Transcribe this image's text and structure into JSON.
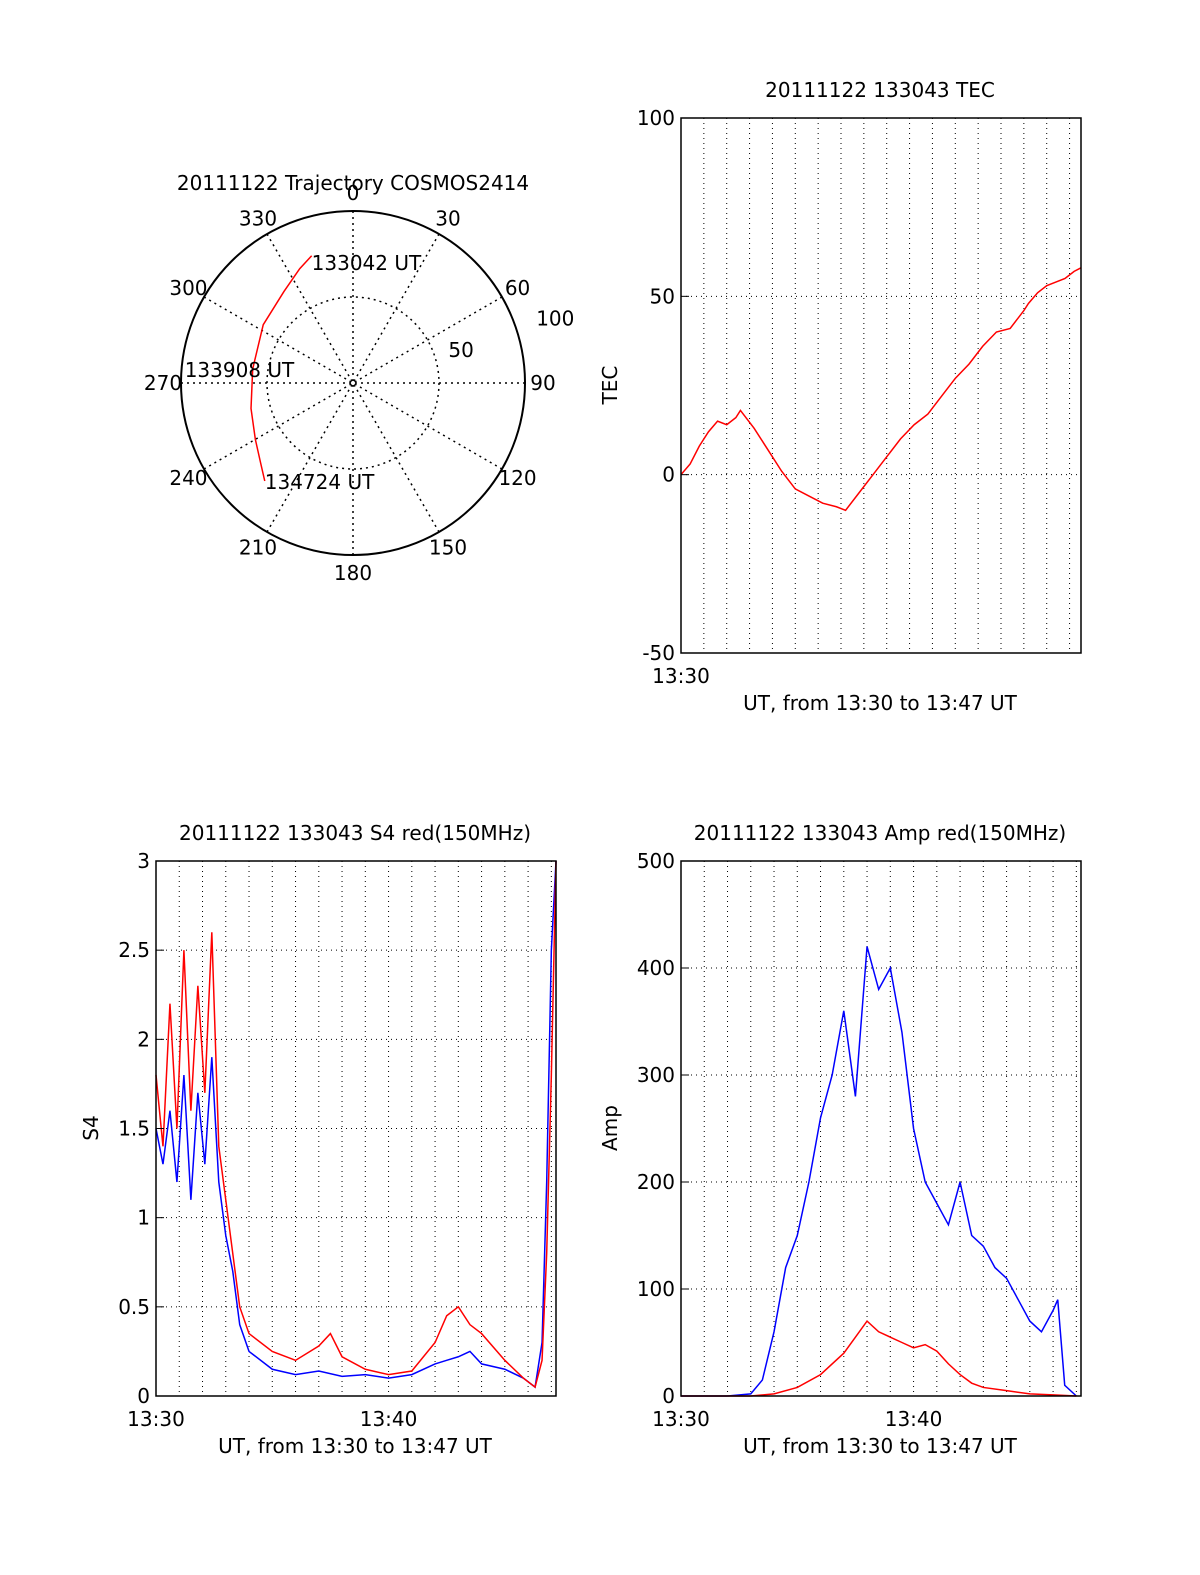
{
  "colors": {
    "red": "#ff0000",
    "blue": "#0000ff",
    "axis": "#000000",
    "grid": "#000000"
  },
  "chart_data": [
    {
      "type": "polar",
      "title": "20111122 Trajectory COSMOS2414",
      "angle_labels": [
        "0",
        "30",
        "60",
        "90",
        "120",
        "150",
        "180",
        "210",
        "240",
        "270",
        "300",
        "330"
      ],
      "radius_labels": [
        "50",
        "100"
      ],
      "grid": true,
      "trajectory": {
        "color": "#ff0000",
        "points": [
          {
            "az": 342,
            "el": 20
          },
          {
            "az": 335,
            "el": 24
          },
          {
            "az": 323,
            "el": 30
          },
          {
            "az": 303,
            "el": 34
          },
          {
            "az": 278,
            "el": 37
          },
          {
            "az": 256,
            "el": 35
          },
          {
            "az": 240,
            "el": 31
          },
          {
            "az": 229,
            "el": 26
          },
          {
            "az": 222,
            "el": 21
          }
        ],
        "labels": [
          {
            "text": "133042 UT",
            "az": 342,
            "el": 20
          },
          {
            "text": "133908 UT",
            "az": 278,
            "el": 37
          },
          {
            "text": "134724 UT",
            "az": 222,
            "el": 21
          }
        ]
      }
    },
    {
      "type": "line",
      "title": "20111122 133043 TEC",
      "xlabel": "UT, from 13:30 to 13:47 UT",
      "ylabel": "TEC",
      "xlim": [
        0,
        17.5
      ],
      "ylim": [
        -50,
        100
      ],
      "yticks": [
        -50,
        0,
        50,
        100
      ],
      "xticks": [
        {
          "v": 0,
          "label": "13:30"
        }
      ],
      "grid": true,
      "series": [
        {
          "color": "#ff0000",
          "x": [
            0.0,
            0.4,
            0.8,
            1.2,
            1.6,
            2.0,
            2.4,
            2.6,
            3.2,
            3.8,
            4.4,
            5.0,
            5.6,
            6.2,
            6.8,
            7.2,
            7.8,
            8.4,
            9.0,
            9.6,
            10.2,
            10.8,
            11.4,
            12.0,
            12.6,
            13.2,
            13.8,
            14.4,
            15.0,
            15.2,
            15.6,
            16.0,
            16.4,
            16.8,
            17.2,
            17.5
          ],
          "y": [
            0,
            3,
            8,
            12,
            15,
            14,
            16,
            18,
            13,
            7,
            1,
            -4,
            -6,
            -8,
            -9,
            -10,
            -5,
            0,
            5,
            10,
            14,
            17,
            22,
            27,
            31,
            36,
            40,
            41,
            46,
            48,
            51,
            53,
            54,
            55,
            57,
            58
          ]
        }
      ]
    },
    {
      "type": "line",
      "title": "20111122 133043 S4 red(150MHz)",
      "xlabel": "UT, from 13:30 to 13:47 UT",
      "ylabel": "S4",
      "xlim": [
        0,
        17.2
      ],
      "ylim": [
        0,
        3
      ],
      "yticks": [
        0,
        0.5,
        1,
        1.5,
        2,
        2.5,
        3
      ],
      "xticks": [
        {
          "v": 0,
          "label": "13:30"
        },
        {
          "v": 10,
          "label": "13:40"
        }
      ],
      "grid": true,
      "series": [
        {
          "color": "#0000ff",
          "x": [
            0,
            0.3,
            0.6,
            0.9,
            1.2,
            1.5,
            1.8,
            2.1,
            2.4,
            2.7,
            3.0,
            3.3,
            3.6,
            4.0,
            5.0,
            6.0,
            7.0,
            8.0,
            9.0,
            10.0,
            11.0,
            12.0,
            12.5,
            13.0,
            13.5,
            14.0,
            15.0,
            15.8,
            16.3,
            16.6,
            16.8,
            17.0,
            17.2
          ],
          "y": [
            1.5,
            1.3,
            1.6,
            1.2,
            1.8,
            1.1,
            1.7,
            1.3,
            1.9,
            1.2,
            0.9,
            0.7,
            0.4,
            0.25,
            0.15,
            0.12,
            0.14,
            0.11,
            0.12,
            0.1,
            0.12,
            0.18,
            0.2,
            0.22,
            0.25,
            0.18,
            0.15,
            0.1,
            0.05,
            0.3,
            1.2,
            2.5,
            3
          ]
        },
        {
          "color": "#ff0000",
          "x": [
            0,
            0.3,
            0.6,
            0.9,
            1.2,
            1.5,
            1.8,
            2.1,
            2.4,
            2.7,
            3.0,
            3.3,
            3.6,
            4.0,
            5.0,
            6.0,
            7.0,
            7.5,
            8.0,
            9.0,
            10.0,
            11.0,
            12.0,
            12.5,
            13.0,
            13.5,
            14.0,
            15.0,
            15.8,
            16.3,
            16.6,
            16.8,
            17.0,
            17.2
          ],
          "y": [
            1.8,
            1.4,
            2.2,
            1.5,
            2.5,
            1.6,
            2.3,
            1.7,
            2.6,
            1.4,
            1.1,
            0.8,
            0.5,
            0.35,
            0.25,
            0.2,
            0.28,
            0.35,
            0.22,
            0.15,
            0.12,
            0.14,
            0.3,
            0.45,
            0.5,
            0.4,
            0.35,
            0.2,
            0.1,
            0.05,
            0.2,
            0.8,
            1.8,
            3
          ]
        }
      ]
    },
    {
      "type": "line",
      "title": "20111122 133043 Amp red(150MHz)",
      "xlabel": "UT, from 13:30 to 13:47 UT",
      "ylabel": "Amp",
      "xlim": [
        0,
        17.2
      ],
      "ylim": [
        0,
        500
      ],
      "yticks": [
        0,
        100,
        200,
        300,
        400,
        500
      ],
      "xticks": [
        {
          "v": 0,
          "label": "13:30"
        },
        {
          "v": 10,
          "label": "13:40"
        }
      ],
      "grid": true,
      "series": [
        {
          "color": "#0000ff",
          "x": [
            0,
            1,
            2,
            3,
            3.5,
            4.0,
            4.5,
            5.0,
            5.5,
            6.0,
            6.5,
            7.0,
            7.5,
            8.0,
            8.5,
            9.0,
            9.5,
            10.0,
            10.5,
            11.0,
            11.5,
            12.0,
            12.5,
            13.0,
            13.5,
            14.0,
            14.5,
            15.0,
            15.5,
            16.0,
            16.2,
            16.5,
            17.0
          ],
          "y": [
            0,
            0,
            0,
            2,
            15,
            60,
            120,
            150,
            200,
            260,
            300,
            360,
            280,
            420,
            380,
            400,
            340,
            250,
            200,
            180,
            160,
            200,
            150,
            140,
            120,
            110,
            90,
            70,
            60,
            80,
            90,
            10,
            0
          ]
        },
        {
          "color": "#ff0000",
          "x": [
            0,
            3,
            4,
            5,
            6,
            7,
            7.5,
            8.0,
            8.5,
            9.0,
            9.5,
            10.0,
            10.5,
            11.0,
            11.5,
            12.0,
            12.5,
            13.0,
            14.0,
            15.0,
            16.0,
            17.0
          ],
          "y": [
            0,
            0,
            2,
            8,
            20,
            40,
            55,
            70,
            60,
            55,
            50,
            45,
            48,
            42,
            30,
            20,
            12,
            8,
            5,
            2,
            1,
            0
          ]
        }
      ]
    }
  ]
}
